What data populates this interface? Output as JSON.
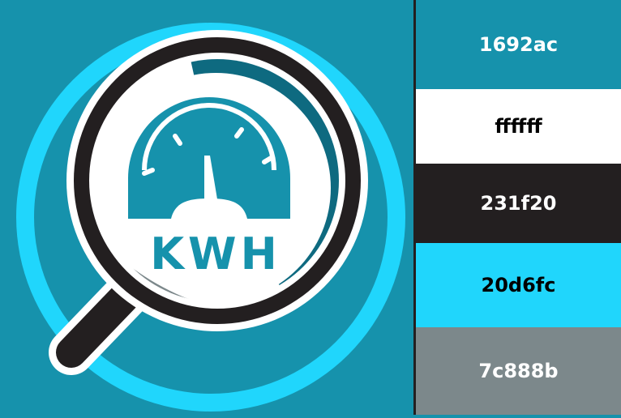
{
  "logo": {
    "text": "KWH"
  },
  "palette": [
    {
      "hex": "1692ac",
      "color": "#1692ac",
      "text_color": "#ffffff"
    },
    {
      "hex": "ffffff",
      "color": "#ffffff",
      "text_color": "#000000"
    },
    {
      "hex": "231f20",
      "color": "#231f20",
      "text_color": "#ffffff"
    },
    {
      "hex": "20d6fc",
      "color": "#20d6fc",
      "text_color": "#000000"
    },
    {
      "hex": "7c888b",
      "color": "#7c888b",
      "text_color": "#ffffff"
    }
  ],
  "icons": [
    "magnifying-glass-icon",
    "speedometer-gauge-icon"
  ]
}
